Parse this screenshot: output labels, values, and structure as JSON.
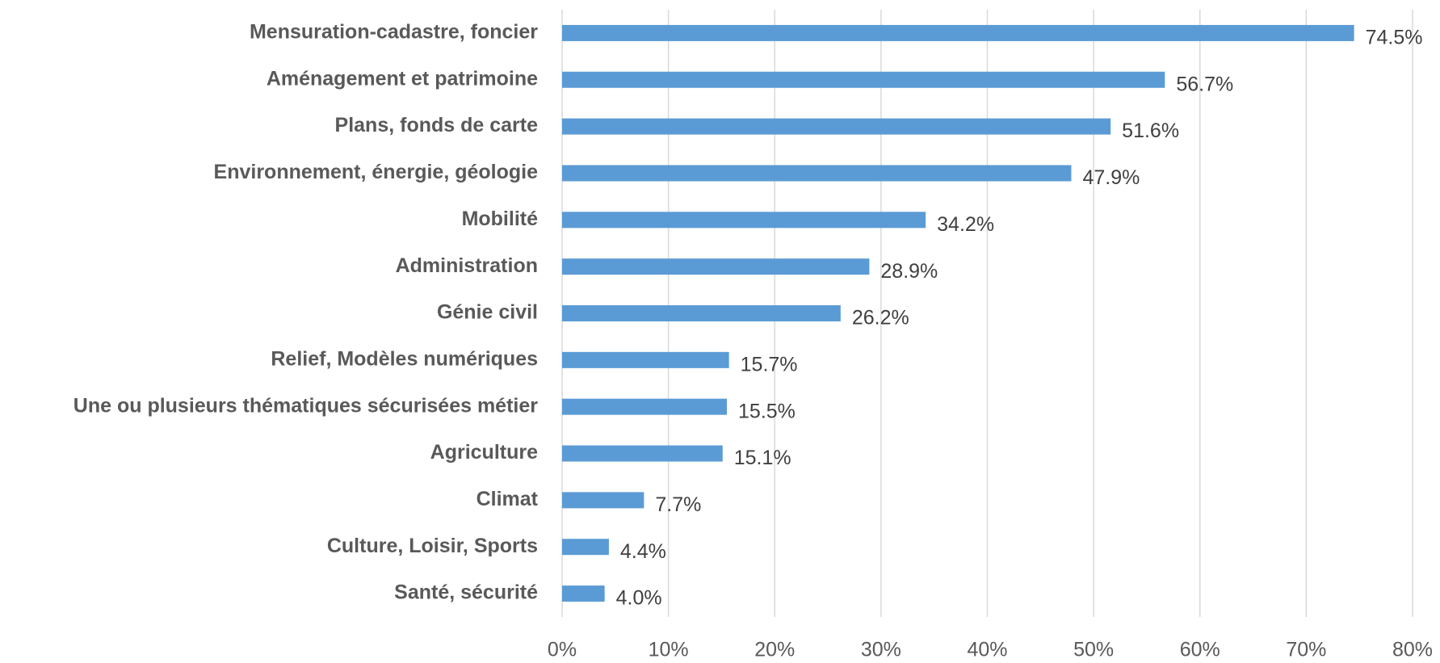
{
  "chart_data": {
    "type": "hbar",
    "categories": [
      "Mensuration-cadastre, foncier",
      "Aménagement et patrimoine",
      "Plans, fonds de carte",
      "Environnement, énergie, géologie",
      "Mobilité",
      "Administration",
      "Génie civil",
      "Relief, Modèles numériques",
      "Une ou plusieurs thématiques sécurisées métier",
      "Agriculture",
      "Climat",
      "Culture, Loisir, Sports",
      "Santé, sécurité"
    ],
    "values": [
      74.5,
      56.7,
      51.6,
      47.9,
      34.2,
      28.9,
      26.2,
      15.7,
      15.5,
      15.1,
      7.7,
      4.4,
      4.0
    ],
    "value_labels": [
      "74.5%",
      "56.7%",
      "51.6%",
      "47.9%",
      "34.2%",
      "28.9%",
      "26.2%",
      "15.7%",
      "15.5%",
      "15.1%",
      "7.7%",
      "4.4%",
      "4.0%"
    ],
    "color": "#5b9bd5",
    "xlim": [
      0,
      80
    ],
    "xticks": [
      {
        "value": 0,
        "label": "0%"
      },
      {
        "value": 10,
        "label": "10%"
      },
      {
        "value": 20,
        "label": "20%"
      },
      {
        "value": 30,
        "label": "30%"
      },
      {
        "value": 40,
        "label": "40%"
      },
      {
        "value": 50,
        "label": "50%"
      },
      {
        "value": 60,
        "label": "60%"
      },
      {
        "value": 70,
        "label": "70%"
      },
      {
        "value": 80,
        "label": "80%"
      }
    ],
    "grid": true
  }
}
